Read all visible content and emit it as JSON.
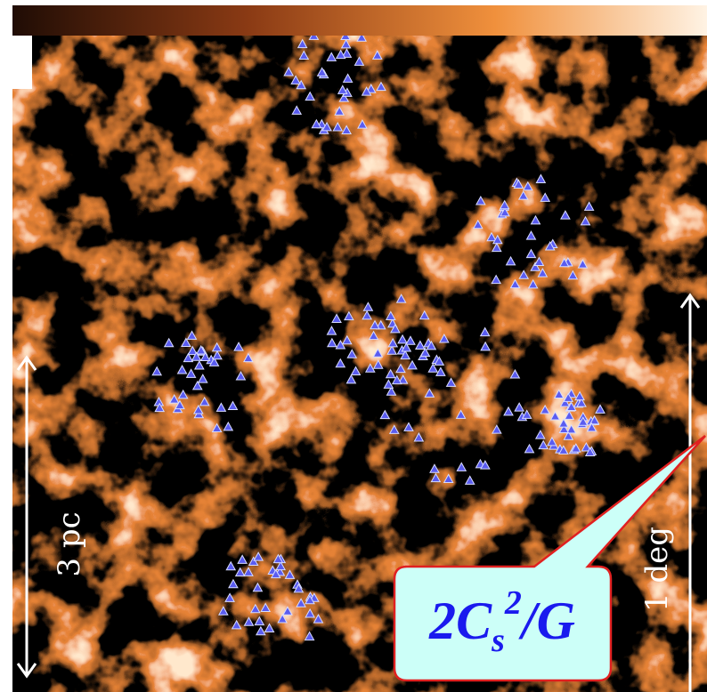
{
  "labels": {
    "left_scale": "3 pc",
    "right_scale": "1 deg"
  },
  "callout": {
    "base": "2C",
    "subscript": "s",
    "superscript": "2",
    "tail": "/G"
  }
}
